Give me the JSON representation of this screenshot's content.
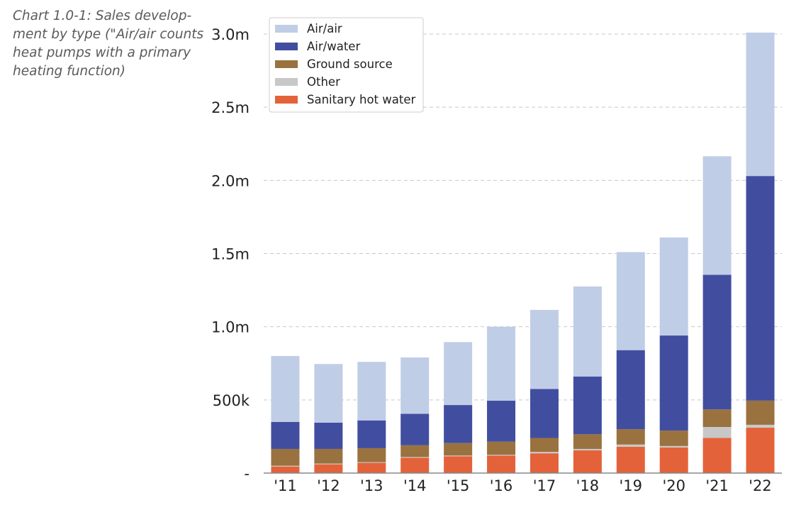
{
  "caption": {
    "lines": [
      "Chart 1.0-1: Sales develop-",
      "ment by type (\"Air/air counts",
      "heat pumps with a primary",
      "heating function)"
    ]
  },
  "chart_data": {
    "type": "bar",
    "stacked": true,
    "title": "",
    "xlabel": "",
    "ylabel": "",
    "categories": [
      "'11",
      "'12",
      "'13",
      "'14",
      "'15",
      "'16",
      "'17",
      "'18",
      "'19",
      "'20",
      "'21",
      "'22"
    ],
    "ylim": [
      0,
      3000000
    ],
    "yticks": [
      {
        "value": 0,
        "label": "-"
      },
      {
        "value": 500000,
        "label": "500k"
      },
      {
        "value": 1000000,
        "label": "1.0m"
      },
      {
        "value": 1500000,
        "label": "1.5m"
      },
      {
        "value": 2000000,
        "label": "2.0m"
      },
      {
        "value": 2500000,
        "label": "2.5m"
      },
      {
        "value": 3000000,
        "label": "3.0m"
      }
    ],
    "grid": true,
    "legend_position": "top-left",
    "series": [
      {
        "name": "Sanitary hot water",
        "color": "#e4623a",
        "values": [
          45000,
          60000,
          70000,
          105000,
          115000,
          120000,
          135000,
          155000,
          180000,
          175000,
          240000,
          310000
        ]
      },
      {
        "name": "Other",
        "color": "#c8c8c8",
        "values": [
          5000,
          5000,
          5000,
          5000,
          5000,
          5000,
          10000,
          10000,
          15000,
          10000,
          75000,
          20000
        ]
      },
      {
        "name": "Ground source",
        "color": "#9a723f",
        "values": [
          115000,
          100000,
          95000,
          80000,
          85000,
          90000,
          95000,
          100000,
          105000,
          105000,
          120000,
          165000
        ]
      },
      {
        "name": "Air/water",
        "color": "#414ea0",
        "values": [
          185000,
          180000,
          190000,
          215000,
          260000,
          280000,
          335000,
          395000,
          540000,
          650000,
          920000,
          1535000
        ]
      },
      {
        "name": "Air/air",
        "color": "#c0cde6",
        "values": [
          450000,
          400000,
          400000,
          385000,
          430000,
          505000,
          540000,
          615000,
          670000,
          670000,
          810000,
          980000
        ]
      }
    ],
    "legend_order": [
      "Air/air",
      "Air/water",
      "Ground source",
      "Other",
      "Sanitary hot water"
    ]
  }
}
